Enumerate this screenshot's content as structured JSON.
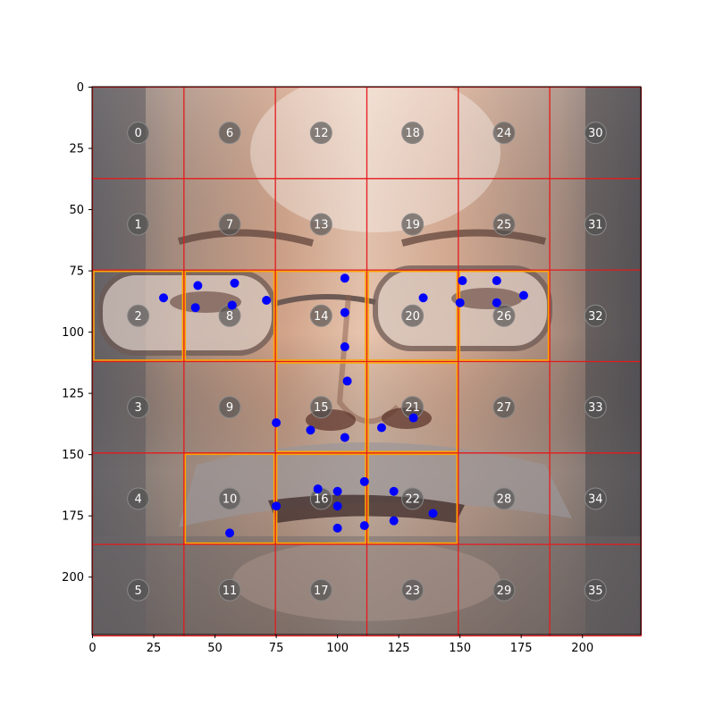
{
  "chart_data": {
    "type": "scatter",
    "background": "face photo with 6x6 grid overlay",
    "title": "",
    "xlabel": "",
    "ylabel": "",
    "xlim": [
      0,
      224
    ],
    "ylim": [
      224,
      0
    ],
    "x_ticks": [
      0,
      25,
      50,
      75,
      100,
      125,
      150,
      175,
      200
    ],
    "y_ticks": [
      0,
      25,
      50,
      75,
      100,
      125,
      150,
      175,
      200
    ],
    "grid": {
      "rows": 6,
      "cols": 6,
      "cell_size": 37.33,
      "line_color": "#e41a1c",
      "cell_labels": [
        "0",
        "1",
        "2",
        "3",
        "4",
        "5",
        "6",
        "7",
        "8",
        "9",
        "10",
        "11",
        "12",
        "13",
        "14",
        "15",
        "16",
        "17",
        "18",
        "19",
        "20",
        "21",
        "22",
        "23",
        "24",
        "25",
        "26",
        "27",
        "28",
        "29",
        "30",
        "31",
        "32",
        "33",
        "34",
        "35"
      ],
      "highlighted_cells": [
        2,
        8,
        10,
        14,
        15,
        16,
        20,
        21,
        22,
        26
      ],
      "highlight_color": "#ffa500"
    },
    "landmark_color": "#0000ff",
    "landmarks": [
      {
        "x": 29,
        "y": 86
      },
      {
        "x": 43,
        "y": 81
      },
      {
        "x": 42,
        "y": 90
      },
      {
        "x": 58,
        "y": 80
      },
      {
        "x": 57,
        "y": 89
      },
      {
        "x": 71,
        "y": 87
      },
      {
        "x": 103,
        "y": 78
      },
      {
        "x": 103,
        "y": 92
      },
      {
        "x": 103,
        "y": 106
      },
      {
        "x": 104,
        "y": 120
      },
      {
        "x": 135,
        "y": 86
      },
      {
        "x": 151,
        "y": 79
      },
      {
        "x": 150,
        "y": 88
      },
      {
        "x": 165,
        "y": 79
      },
      {
        "x": 165,
        "y": 88
      },
      {
        "x": 176,
        "y": 85
      },
      {
        "x": 75,
        "y": 137
      },
      {
        "x": 89,
        "y": 140
      },
      {
        "x": 103,
        "y": 143
      },
      {
        "x": 118,
        "y": 139
      },
      {
        "x": 131,
        "y": 135
      },
      {
        "x": 75,
        "y": 171
      },
      {
        "x": 92,
        "y": 164
      },
      {
        "x": 100,
        "y": 165
      },
      {
        "x": 111,
        "y": 161
      },
      {
        "x": 123,
        "y": 165
      },
      {
        "x": 139,
        "y": 174
      },
      {
        "x": 123,
        "y": 177
      },
      {
        "x": 111,
        "y": 179
      },
      {
        "x": 100,
        "y": 180
      },
      {
        "x": 100,
        "y": 171
      },
      {
        "x": 56,
        "y": 182
      }
    ]
  }
}
